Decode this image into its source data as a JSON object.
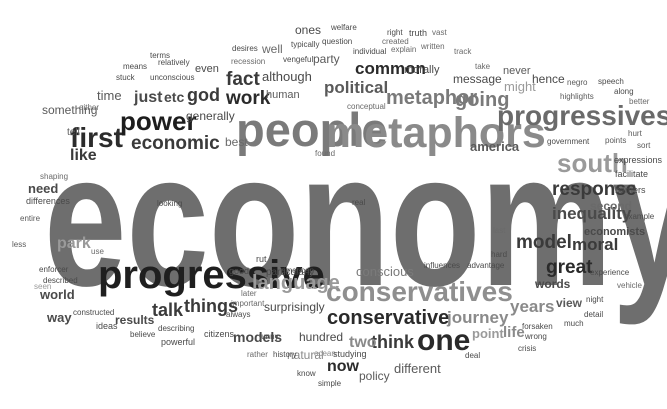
{
  "words": [
    {
      "text": "economy",
      "color": "#6e6e6e",
      "weight": 700
    },
    {
      "text": "people",
      "color": "#7a7a7a",
      "weight": 700
    },
    {
      "text": "metaphors",
      "color": "#8a8a8a",
      "weight": 700
    },
    {
      "text": "progressive",
      "color": "#1f1f1f",
      "weight": 700
    },
    {
      "text": "conservatives",
      "color": "#8f8f8f",
      "weight": 700
    },
    {
      "text": "progressives",
      "color": "#6a6a6a",
      "weight": 700
    },
    {
      "text": "one",
      "color": "#2a2a2a",
      "weight": 700
    },
    {
      "text": "first",
      "color": "#2b2b2b",
      "weight": 700
    },
    {
      "text": "power",
      "color": "#1d1d1d",
      "weight": 700
    },
    {
      "text": "economic",
      "color": "#3a3a3a",
      "weight": 700
    },
    {
      "text": "conservative",
      "color": "#2a2a2a",
      "weight": 700
    },
    {
      "text": "south",
      "color": "#9a9a9a",
      "weight": 700
    },
    {
      "text": "response",
      "color": "#3a3a3a",
      "weight": 700
    },
    {
      "text": "language",
      "color": "#9a9a9a",
      "weight": 700
    },
    {
      "text": "metaphor",
      "color": "#7a7a7a",
      "weight": 700
    },
    {
      "text": "political",
      "color": "#5a5a5a",
      "weight": 700
    },
    {
      "text": "going",
      "color": "#7a7a7a",
      "weight": 700
    },
    {
      "text": "work",
      "color": "#2a2a2a",
      "weight": 700
    },
    {
      "text": "fact",
      "color": "#3a3a3a",
      "weight": 700
    },
    {
      "text": "common",
      "color": "#2a2a2a",
      "weight": 700
    },
    {
      "text": "god",
      "color": "#3a3a3a",
      "weight": 700
    },
    {
      "text": "just",
      "color": "#4a4a4a",
      "weight": 700
    },
    {
      "text": "etc",
      "color": "#4a4a4a",
      "weight": 700
    },
    {
      "text": "time",
      "color": "#5a5a5a",
      "weight": 400
    },
    {
      "text": "like",
      "color": "#3a3a3a",
      "weight": 700
    },
    {
      "text": "talk",
      "color": "#3a3a3a",
      "weight": 700
    },
    {
      "text": "things",
      "color": "#3a3a3a",
      "weight": 700
    },
    {
      "text": "model",
      "color": "#3a3a3a",
      "weight": 700
    },
    {
      "text": "great",
      "color": "#2a2a2a",
      "weight": 700
    },
    {
      "text": "moral",
      "color": "#3a3a3a",
      "weight": 700
    },
    {
      "text": "inequality",
      "color": "#4a4a4a",
      "weight": 700
    },
    {
      "text": "economists",
      "color": "#4a4a4a",
      "weight": 700
    },
    {
      "text": "second",
      "color": "#6a6a6a",
      "weight": 700
    },
    {
      "text": "years",
      "color": "#8a8a8a",
      "weight": 700
    },
    {
      "text": "journey",
      "color": "#8a8a8a",
      "weight": 700
    },
    {
      "text": "think",
      "color": "#3a3a3a",
      "weight": 700
    },
    {
      "text": "two",
      "color": "#8a8a8a",
      "weight": 700
    },
    {
      "text": "now",
      "color": "#2a2a2a",
      "weight": 700
    },
    {
      "text": "models",
      "color": "#4a4a4a",
      "weight": 700
    },
    {
      "text": "results",
      "color": "#4a4a4a",
      "weight": 700
    },
    {
      "text": "conscious",
      "color": "#7a7a7a",
      "weight": 400
    },
    {
      "text": "park",
      "color": "#9a9a9a",
      "weight": 700
    },
    {
      "text": "need",
      "color": "#4a4a4a",
      "weight": 700
    },
    {
      "text": "world",
      "color": "#4a4a4a",
      "weight": 700
    },
    {
      "text": "way",
      "color": "#4a4a4a",
      "weight": 700
    },
    {
      "text": "something",
      "color": "#5a5a5a",
      "weight": 400
    },
    {
      "text": "america",
      "color": "#5a5a5a",
      "weight": 700
    },
    {
      "text": "words",
      "color": "#4a4a4a",
      "weight": 700
    },
    {
      "text": "view",
      "color": "#5a5a5a",
      "weight": 700
    },
    {
      "text": "point",
      "color": "#9a9a9a",
      "weight": 700
    },
    {
      "text": "different",
      "color": "#5a5a5a",
      "weight": 400
    },
    {
      "text": "policy",
      "color": "#5a5a5a",
      "weight": 400
    },
    {
      "text": "natural",
      "color": "#8a8a8a",
      "weight": 400
    },
    {
      "text": "hundred",
      "color": "#4a4a4a",
      "weight": 400
    },
    {
      "text": "surprisingly",
      "color": "#4a4a4a",
      "weight": 400
    },
    {
      "text": "life",
      "color": "#8a8a8a",
      "weight": 700
    },
    {
      "text": "generally",
      "color": "#4a4a4a",
      "weight": 400
    },
    {
      "text": "best",
      "color": "#6a6a6a",
      "weight": 400
    },
    {
      "text": "although",
      "color": "#4a4a4a",
      "weight": 400
    },
    {
      "text": "human",
      "color": "#5a5a5a",
      "weight": 400
    },
    {
      "text": "message",
      "color": "#4a4a4a",
      "weight": 400
    },
    {
      "text": "hence",
      "color": "#4a4a4a",
      "weight": 400
    },
    {
      "text": "might",
      "color": "#9a9a9a",
      "weight": 400
    },
    {
      "text": "never",
      "color": "#5a5a5a",
      "weight": 400
    },
    {
      "text": "even",
      "color": "#4a4a4a",
      "weight": 400
    },
    {
      "text": "party",
      "color": "#5a5a5a",
      "weight": 400
    },
    {
      "text": "ones",
      "color": "#4a4a4a",
      "weight": 400
    },
    {
      "text": "well",
      "color": "#6a6a6a",
      "weight": 400
    },
    {
      "text": "morally",
      "color": "#4a4a4a",
      "weight": 400
    },
    {
      "text": "tell",
      "color": "#5a5a5a",
      "weight": 400
    },
    {
      "text": "differences",
      "color": "#4a4a4a",
      "weight": 400
    },
    {
      "text": "enforcer",
      "color": "#4a4a4a",
      "weight": 400
    },
    {
      "text": "described",
      "color": "#4a4a4a",
      "weight": 400
    },
    {
      "text": "constructed",
      "color": "#4a4a4a",
      "weight": 400
    },
    {
      "text": "ideas",
      "color": "#4a4a4a",
      "weight": 400
    },
    {
      "text": "believe",
      "color": "#4a4a4a",
      "weight": 400
    },
    {
      "text": "powerful",
      "color": "#4a4a4a",
      "weight": 400
    },
    {
      "text": "describing",
      "color": "#4a4a4a",
      "weight": 400
    },
    {
      "text": "citizens",
      "color": "#4a4a4a",
      "weight": 400
    },
    {
      "text": "important",
      "color": "#6a6a6a",
      "weight": 400
    },
    {
      "text": "always",
      "color": "#4a4a4a",
      "weight": 400
    },
    {
      "text": "rather",
      "color": "#6a6a6a",
      "weight": 400
    },
    {
      "text": "later",
      "color": "#6a6a6a",
      "weight": 400
    },
    {
      "text": "good",
      "color": "#4a4a4a",
      "weight": 400
    },
    {
      "text": "particularly",
      "color": "#4a4a4a",
      "weight": 400
    },
    {
      "text": "american",
      "color": "#4a4a4a",
      "weight": 400
    },
    {
      "text": "rut",
      "color": "#4a4a4a",
      "weight": 400
    },
    {
      "text": "funny",
      "color": "#4a4a4a",
      "weight": 400
    },
    {
      "text": "history",
      "color": "#4a4a4a",
      "weight": 400
    },
    {
      "text": "know",
      "color": "#4a4a4a",
      "weight": 400
    },
    {
      "text": "simple",
      "color": "#4a4a4a",
      "weight": 400
    },
    {
      "text": "ocean",
      "color": "#8a8a8a",
      "weight": 400
    },
    {
      "text": "studying",
      "color": "#4a4a4a",
      "weight": 400
    },
    {
      "text": "deal",
      "color": "#4a4a4a",
      "weight": 400
    },
    {
      "text": "crisis",
      "color": "#4a4a4a",
      "weight": 400
    },
    {
      "text": "wrong",
      "color": "#4a4a4a",
      "weight": 400
    },
    {
      "text": "forsaken",
      "color": "#4a4a4a",
      "weight": 400
    },
    {
      "text": "much",
      "color": "#4a4a4a",
      "weight": 400
    },
    {
      "text": "detail",
      "color": "#4a4a4a",
      "weight": 400
    },
    {
      "text": "night",
      "color": "#4a4a4a",
      "weight": 400
    },
    {
      "text": "experience",
      "color": "#4a4a4a",
      "weight": 400
    },
    {
      "text": "vehicle",
      "color": "#6a6a6a",
      "weight": 400
    },
    {
      "text": "example",
      "color": "#4a4a4a",
      "weight": 400
    },
    {
      "text": "barriers",
      "color": "#4a4a4a",
      "weight": 400
    },
    {
      "text": "facilitate",
      "color": "#4a4a4a",
      "weight": 400
    },
    {
      "text": "expressions",
      "color": "#4a4a4a",
      "weight": 400
    },
    {
      "text": "hurt",
      "color": "#5a5a5a",
      "weight": 400
    },
    {
      "text": "sort",
      "color": "#5a5a5a",
      "weight": 400
    },
    {
      "text": "points",
      "color": "#5a5a5a",
      "weight": 400
    },
    {
      "text": "government",
      "color": "#4a4a4a",
      "weight": 400
    },
    {
      "text": "better",
      "color": "#6a6a6a",
      "weight": 400
    },
    {
      "text": "along",
      "color": "#4a4a4a",
      "weight": 400
    },
    {
      "text": "speech",
      "color": "#4a4a4a",
      "weight": 400
    },
    {
      "text": "highlights",
      "color": "#5a5a5a",
      "weight": 400
    },
    {
      "text": "negro",
      "color": "#5a5a5a",
      "weight": 400
    },
    {
      "text": "take",
      "color": "#6a6a6a",
      "weight": 400
    },
    {
      "text": "track",
      "color": "#6a6a6a",
      "weight": 400
    },
    {
      "text": "written",
      "color": "#6a6a6a",
      "weight": 400
    },
    {
      "text": "truth",
      "color": "#4a4a4a",
      "weight": 400
    },
    {
      "text": "vast",
      "color": "#6a6a6a",
      "weight": 400
    },
    {
      "text": "right",
      "color": "#4a4a4a",
      "weight": 400
    },
    {
      "text": "explain",
      "color": "#6a6a6a",
      "weight": 400
    },
    {
      "text": "individual",
      "color": "#4a4a4a",
      "weight": 400
    },
    {
      "text": "created",
      "color": "#6a6a6a",
      "weight": 400
    },
    {
      "text": "welfare",
      "color": "#4a4a4a",
      "weight": 400
    },
    {
      "text": "question",
      "color": "#4a4a4a",
      "weight": 400
    },
    {
      "text": "vengeful",
      "color": "#4a4a4a",
      "weight": 400
    },
    {
      "text": "typically",
      "color": "#4a4a4a",
      "weight": 400
    },
    {
      "text": "desires",
      "color": "#4a4a4a",
      "weight": 400
    },
    {
      "text": "recession",
      "color": "#6a6a6a",
      "weight": 400
    },
    {
      "text": "relatively",
      "color": "#4a4a4a",
      "weight": 400
    },
    {
      "text": "means",
      "color": "#4a4a4a",
      "weight": 400
    },
    {
      "text": "stuck",
      "color": "#4a4a4a",
      "weight": 400
    },
    {
      "text": "unconscious",
      "color": "#4a4a4a",
      "weight": 400
    },
    {
      "text": "either",
      "color": "#6a6a6a",
      "weight": 400
    },
    {
      "text": "shaping",
      "color": "#6a6a6a",
      "weight": 400
    },
    {
      "text": "entire",
      "color": "#5a5a5a",
      "weight": 400
    },
    {
      "text": "less",
      "color": "#5a5a5a",
      "weight": 400
    },
    {
      "text": "use",
      "color": "#6a6a6a",
      "weight": 400
    },
    {
      "text": "looking",
      "color": "#4a4a4a",
      "weight": 400
    },
    {
      "text": "real",
      "color": "#4a4a4a",
      "weight": 400
    },
    {
      "text": "found",
      "color": "#6a6a6a",
      "weight": 400
    },
    {
      "text": "conceptual",
      "color": "#6a6a6a",
      "weight": 400
    },
    {
      "text": "influences",
      "color": "#4a4a4a",
      "weight": 400
    },
    {
      "text": "advantage",
      "color": "#4a4a4a",
      "weight": 400
    },
    {
      "text": "hard",
      "color": "#4a4a4a",
      "weight": 400
    },
    {
      "text": "last",
      "color": "#6a6a6a",
      "weight": 400
    },
    {
      "text": "terms",
      "color": "#4a4a4a",
      "weight": 400
    },
    {
      "text": "seen",
      "color": "#9a9a9a",
      "weight": 400
    }
  ]
}
